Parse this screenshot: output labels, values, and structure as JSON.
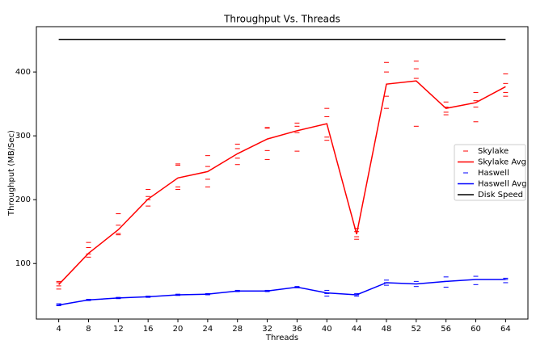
{
  "chart_data": {
    "type": "line",
    "title": "Throughput Vs. Threads",
    "xlabel": "Threads",
    "ylabel": "Throughput (MB/Sec)",
    "xlim": [
      1,
      67
    ],
    "ylim": [
      13,
      471
    ],
    "xticks": [
      4,
      8,
      12,
      16,
      20,
      24,
      28,
      32,
      36,
      40,
      44,
      48,
      52,
      56,
      60,
      64
    ],
    "yticks": [
      100,
      200,
      300,
      400
    ],
    "legend": "right",
    "series": [
      {
        "name": "Skylake",
        "color": "#ff0000",
        "mode": "markers",
        "x": [
          4,
          4,
          4,
          4,
          8,
          8,
          8,
          8,
          12,
          12,
          12,
          12,
          16,
          16,
          16,
          16,
          20,
          20,
          20,
          20,
          24,
          24,
          24,
          24,
          28,
          28,
          28,
          28,
          32,
          32,
          32,
          32,
          36,
          36,
          36,
          36,
          40,
          40,
          40,
          40,
          44,
          44,
          44,
          44,
          48,
          48,
          48,
          48,
          52,
          52,
          52,
          52,
          56,
          56,
          56,
          56,
          60,
          60,
          60,
          60,
          64,
          64,
          64,
          64
        ],
        "values": [
          60,
          65,
          70,
          72,
          110,
          115,
          125,
          133,
          145,
          147,
          160,
          178,
          190,
          200,
          205,
          216,
          216,
          220,
          254,
          256,
          220,
          232,
          252,
          269,
          255,
          265,
          280,
          287,
          263,
          277,
          312,
          313,
          276,
          305,
          315,
          320,
          293,
          298,
          330,
          343,
          138,
          142,
          150,
          155,
          343,
          362,
          400,
          415,
          315,
          390,
          405,
          417,
          333,
          337,
          345,
          353,
          322,
          345,
          355,
          368,
          362,
          368,
          382,
          397
        ]
      },
      {
        "name": "Skylake Avg",
        "color": "#ff0000",
        "mode": "lines",
        "x": [
          4,
          8,
          12,
          16,
          20,
          24,
          28,
          32,
          36,
          40,
          44,
          48,
          52,
          56,
          60,
          64
        ],
        "values": [
          67,
          116,
          153,
          201,
          234,
          244,
          272,
          295,
          308,
          319,
          146,
          381,
          386,
          343,
          352,
          377
        ]
      },
      {
        "name": "Haswell",
        "color": "#0000ff",
        "mode": "markers",
        "x": [
          4,
          4,
          4,
          8,
          8,
          8,
          12,
          12,
          12,
          16,
          16,
          16,
          20,
          20,
          20,
          24,
          24,
          24,
          28,
          28,
          28,
          32,
          32,
          32,
          36,
          36,
          36,
          40,
          40,
          40,
          44,
          44,
          44,
          48,
          48,
          48,
          52,
          52,
          52,
          56,
          56,
          56,
          60,
          60,
          60,
          64,
          64,
          64
        ],
        "values": [
          34,
          35,
          37,
          42,
          43,
          44,
          45,
          46,
          47,
          47,
          48,
          49,
          50,
          51,
          52,
          51,
          52,
          53,
          56,
          57,
          58,
          56,
          57,
          58,
          62,
          63,
          64,
          49,
          53,
          58,
          49,
          51,
          53,
          66,
          70,
          74,
          64,
          68,
          72,
          63,
          72,
          79,
          67,
          75,
          80,
          70,
          75,
          77
        ]
      },
      {
        "name": "Haswell Avg",
        "color": "#0000ff",
        "mode": "lines",
        "x": [
          4,
          8,
          12,
          16,
          20,
          24,
          28,
          32,
          36,
          40,
          44,
          48,
          52,
          56,
          60,
          64
        ],
        "values": [
          35,
          43,
          46,
          48,
          51,
          52,
          57,
          57,
          63,
          54,
          51,
          70,
          68,
          72,
          75,
          75
        ]
      },
      {
        "name": "Disk Speed",
        "color": "#000000",
        "mode": "lines",
        "x": [
          4,
          64
        ],
        "values": [
          451,
          451
        ]
      }
    ]
  }
}
